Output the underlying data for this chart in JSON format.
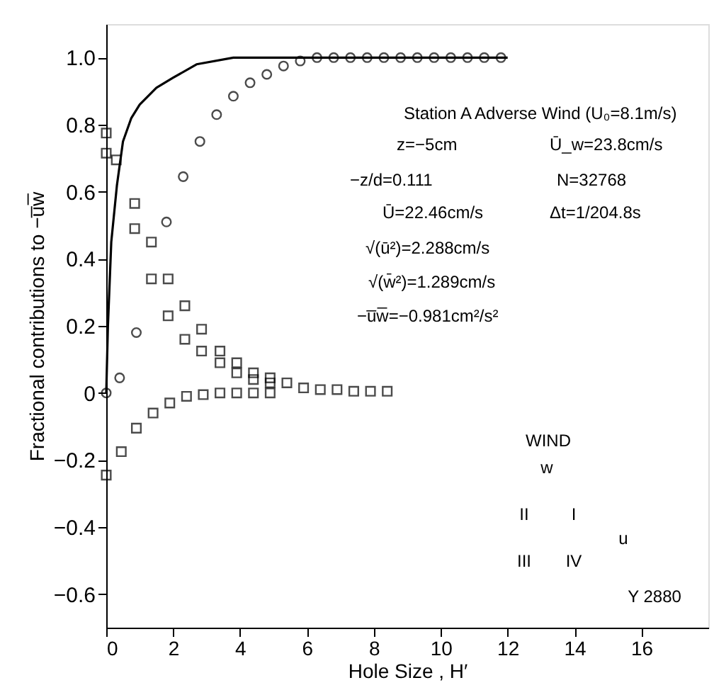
{
  "chart_data": {
    "type": "scatter",
    "xlabel": "Hole Size , H′",
    "ylabel": "Fractional contributions to −u̅w̅",
    "xlim": [
      0,
      18
    ],
    "xticks": [
      0,
      2,
      4,
      6,
      8,
      10,
      12,
      14,
      16
    ],
    "ylim": [
      -0.7,
      1.1
    ],
    "yticks": [
      {
        "value": -0.6,
        "label": "−0.6"
      },
      {
        "value": -0.4,
        "label": "−0.4"
      },
      {
        "value": -0.2,
        "label": "−0.2"
      },
      {
        "value": 0,
        "label": "0"
      },
      {
        "value": 0.2,
        "label": "0.2"
      },
      {
        "value": 0.4,
        "label": "0.4"
      },
      {
        "value": 0.6,
        "label": "0.6"
      },
      {
        "value": 0.8,
        "label": "0.8"
      },
      {
        "value": 1,
        "label": "1.0"
      }
    ],
    "grid": false,
    "series": [
      {
        "type": "line",
        "marker": "none",
        "line_style": "solid",
        "color": "#000000",
        "x": [
          0,
          0.05,
          0.15,
          0.32,
          0.5,
          0.75,
          1,
          1.5,
          2,
          2.7,
          3.8,
          5,
          6,
          8,
          10,
          12
        ],
        "values": [
          0,
          0.2,
          0.45,
          0.62,
          0.75,
          0.82,
          0.86,
          0.91,
          0.94,
          0.98,
          1.0,
          1.0,
          1.0,
          1.0,
          1.0,
          1.0
        ]
      },
      {
        "marker": "circle",
        "color": "#000000",
        "x": [
          0,
          0.4,
          0.9,
          1.8,
          2.3,
          2.8,
          3.3,
          3.8,
          4.3,
          4.8,
          5.3,
          5.8,
          6.3,
          6.8,
          7.3,
          7.8,
          8.3,
          8.8,
          9.3,
          9.8,
          10.3,
          10.8,
          11.3,
          11.8
        ],
        "values": [
          0,
          0.045,
          0.18,
          0.51,
          0.645,
          0.75,
          0.83,
          0.885,
          0.925,
          0.95,
          0.975,
          0.99,
          1.0,
          1.0,
          1.0,
          1.0,
          1.0,
          1.0,
          1.0,
          1.0,
          1.0,
          1.0,
          1.0,
          1.0
        ]
      },
      {
        "marker": "square",
        "color": "#000000",
        "x": [
          0,
          0.3,
          0.85,
          1.35,
          1.85,
          2.35,
          2.85,
          3.4,
          3.9,
          4.4,
          4.9,
          5.4,
          5.9,
          6.4,
          6.9,
          7.4,
          7.9,
          8.4
        ],
        "values": [
          0.775,
          0.695,
          0.565,
          0.45,
          0.34,
          0.26,
          0.19,
          0.125,
          0.09,
          0.06,
          0.045,
          0.03,
          0.015,
          0.01,
          0.01,
          0.005,
          0.005,
          0.005
        ]
      },
      {
        "marker": "square",
        "color": "#000000",
        "x": [
          0,
          0.85,
          1.35,
          1.85,
          2.35,
          2.85,
          3.4,
          3.9,
          4.4,
          4.9
        ],
        "values": [
          0.715,
          0.49,
          0.34,
          0.23,
          0.16,
          0.125,
          0.09,
          0.06,
          0.04,
          0.03
        ]
      },
      {
        "marker": "square",
        "color": "#000000",
        "x": [
          0,
          0.45,
          0.9,
          1.4,
          1.9,
          2.4,
          2.9,
          3.4,
          3.9,
          4.4,
          4.9
        ],
        "values": [
          -0.245,
          -0.175,
          -0.105,
          -0.06,
          -0.03,
          -0.01,
          -0.005,
          0,
          0,
          0,
          0
        ]
      }
    ],
    "annotations": [
      "Station A   Adverse Wind (U₀=8.1m/s)",
      "z=−5cm",
      "Ū_w=23.8cm/s",
      "−z/d=0.111",
      "N=32768",
      "Ū=22.46cm/s",
      "Δt=1/204.8s",
      "√(ū²)=2.288cm/s",
      "√(w̄²)=1.289cm/s",
      "−u̅w̅=−0.981cm²/s²",
      "WIND",
      "w",
      "II",
      "I",
      "u",
      "III",
      "IV",
      "Y 2880"
    ]
  }
}
